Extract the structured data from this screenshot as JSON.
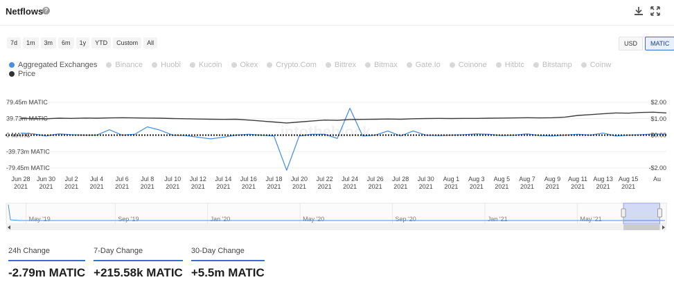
{
  "header": {
    "title": "Netflows",
    "help_icon": "help-icon",
    "download_icon": "download-icon",
    "expand_icon": "expand-icon"
  },
  "range_buttons": [
    "7d",
    "1m",
    "3m",
    "6m",
    "1y",
    "YTD",
    "Custom",
    "All"
  ],
  "unit_buttons": [
    {
      "label": "USD",
      "active": false
    },
    {
      "label": "MATIC",
      "active": true
    }
  ],
  "legend": {
    "row1": [
      {
        "label": "Aggregated Exchanges",
        "color": "#4a90e2",
        "active": true
      },
      {
        "label": "Binance",
        "active": false
      },
      {
        "label": "Huobi",
        "active": false
      },
      {
        "label": "Kucoin",
        "active": false
      },
      {
        "label": "Okex",
        "active": false
      },
      {
        "label": "Crypto.Com",
        "active": false
      },
      {
        "label": "Bittrex",
        "active": false
      },
      {
        "label": "Bitmax",
        "active": false
      },
      {
        "label": "Gate.Io",
        "active": false
      },
      {
        "label": "Coinone",
        "active": false
      },
      {
        "label": "Hitbtc",
        "active": false
      },
      {
        "label": "Bitstamp",
        "active": false
      },
      {
        "label": "Coinw",
        "active": false
      }
    ],
    "row2": [
      {
        "label": "Price",
        "color": "#333333",
        "active": true
      }
    ]
  },
  "colors": {
    "netflow": "#4a90e2",
    "price": "#3b3b3b",
    "accent": "#3a6bd6"
  },
  "chart_data": {
    "type": "line",
    "title": "Netflows",
    "y_left": {
      "ticks": [
        79.45,
        39.73,
        0,
        -39.73,
        -79.45
      ],
      "tick_labels": [
        "79.45m MATIC",
        "39.73m MATIC",
        "0 MATIC",
        "-39.73m MATIC",
        "-79.45m MATIC"
      ],
      "ylim": [
        -79.45,
        79.45
      ],
      "unit": "m MATIC"
    },
    "y_right": {
      "ticks": [
        2,
        1,
        0,
        -2
      ],
      "tick_labels": [
        "$2.00",
        "$1.00",
        "$0.00",
        "-$2.00"
      ],
      "ylim": [
        -2.0,
        2.0
      ]
    },
    "x": {
      "start_day": 0,
      "end_day": 51,
      "tick_days": [
        0,
        2,
        4,
        6,
        8,
        10,
        12,
        14,
        16,
        18,
        20,
        22,
        24,
        26,
        28,
        30,
        32,
        34,
        36,
        38,
        40,
        42,
        44,
        46,
        48
      ],
      "tick_labels": [
        [
          "Jun 28",
          "2021"
        ],
        [
          "Jun 30",
          "2021"
        ],
        [
          "Jul 2",
          "2021"
        ],
        [
          "Jul 4",
          "2021"
        ],
        [
          "Jul 6",
          "2021"
        ],
        [
          "Jul 8",
          "2021"
        ],
        [
          "Jul 10",
          "2021"
        ],
        [
          "Jul 12",
          "2021"
        ],
        [
          "Jul 14",
          "2021"
        ],
        [
          "Jul 16",
          "2021"
        ],
        [
          "Jul 18",
          "2021"
        ],
        [
          "Jul 20",
          "2021"
        ],
        [
          "Jul 22",
          "2021"
        ],
        [
          "Jul 24",
          "2021"
        ],
        [
          "Jul 26",
          "2021"
        ],
        [
          "Jul 28",
          "2021"
        ],
        [
          "Jul 30",
          "2021"
        ],
        [
          "Aug 1",
          "2021"
        ],
        [
          "Aug 3",
          "2021"
        ],
        [
          "Aug 5",
          "2021"
        ],
        [
          "Aug 7",
          "2021"
        ],
        [
          "Aug 9",
          "2021"
        ],
        [
          "Aug 11",
          "2021"
        ],
        [
          "Aug 13",
          "2021"
        ],
        [
          "Aug 15",
          "2021"
        ]
      ],
      "tick_label_last_partial": "Au"
    },
    "series": [
      {
        "name": "Aggregated Exchanges",
        "axis": "left",
        "days": [
          0,
          1,
          2,
          3,
          4,
          5,
          6,
          7,
          8,
          9,
          10,
          11,
          12,
          13,
          14,
          15,
          16,
          17,
          18,
          19,
          20,
          21,
          22,
          23,
          24,
          25,
          26,
          27,
          28,
          29,
          30,
          31,
          32,
          33,
          34,
          35,
          36,
          37,
          38,
          39,
          40,
          41,
          42,
          43,
          44,
          45,
          46,
          47,
          48,
          49,
          50,
          51
        ],
        "values": [
          5,
          3,
          -2,
          3,
          1,
          0,
          0,
          13,
          0,
          2,
          20,
          12,
          0,
          -1,
          -5,
          -9,
          -5,
          0,
          2,
          0,
          -2,
          -85,
          -2,
          2,
          2,
          -8,
          65,
          -2,
          0,
          10,
          -2,
          10,
          0,
          -1,
          0,
          1,
          3,
          2,
          -1,
          0,
          3,
          -1,
          -2,
          0,
          2,
          0,
          5,
          -2,
          0,
          1,
          3,
          2
        ]
      },
      {
        "name": "Price",
        "axis": "right",
        "days": [
          0,
          1,
          2,
          3,
          4,
          5,
          6,
          7,
          8,
          9,
          10,
          11,
          12,
          13,
          14,
          15,
          16,
          17,
          18,
          19,
          20,
          21,
          22,
          23,
          24,
          25,
          26,
          27,
          28,
          29,
          30,
          31,
          32,
          33,
          34,
          35,
          36,
          37,
          38,
          39,
          40,
          41,
          42,
          43,
          44,
          45,
          46,
          47,
          48,
          49,
          50,
          51
        ],
        "values": [
          1.02,
          1.01,
          1.0,
          1.03,
          1.02,
          1.04,
          1.03,
          1.05,
          1.06,
          1.05,
          1.04,
          1.03,
          1.01,
          1.0,
          0.98,
          0.97,
          0.96,
          0.97,
          0.92,
          0.86,
          0.8,
          0.74,
          0.8,
          0.86,
          0.92,
          0.9,
          0.95,
          0.96,
          0.97,
          0.98,
          0.97,
          1.0,
          1.01,
          1.02,
          1.01,
          1.02,
          1.02,
          1.03,
          1.04,
          1.05,
          1.06,
          1.05,
          1.06,
          1.1,
          1.2,
          1.25,
          1.3,
          1.35,
          1.34,
          1.38,
          1.4,
          1.35
        ]
      }
    ],
    "watermark": "intotheblock"
  },
  "navigator": {
    "labels": [
      "May '19",
      "Sep '19",
      "Jan '20",
      "May '20",
      "Sep '20",
      "Jan '21",
      "May '21"
    ],
    "label_positions": [
      0.03,
      0.165,
      0.305,
      0.445,
      0.585,
      0.725,
      0.865
    ],
    "selected_range": [
      0.935,
      0.99
    ]
  },
  "stats": [
    {
      "label": "24h Change",
      "value": "-2.79m MATIC"
    },
    {
      "label": "7-Day Change",
      "value": "+215.58k MATIC"
    },
    {
      "label": "30-Day Change",
      "value": "+5.5m MATIC"
    }
  ]
}
